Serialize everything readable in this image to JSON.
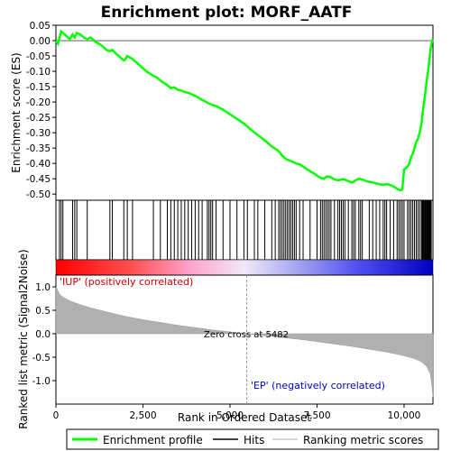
{
  "chart_data": {
    "type": "line",
    "title": "Enrichment plot: MORF_AATF",
    "panels": {
      "es": {
        "ylabel": "Enrichment score (ES)",
        "ylim": [
          -0.52,
          0.05
        ],
        "yticks": [
          0.05,
          0.0,
          -0.05,
          -0.1,
          -0.15,
          -0.2,
          -0.25,
          -0.3,
          -0.35,
          -0.4,
          -0.45,
          -0.5
        ],
        "ytick_labels": [
          "0.05",
          "0.00",
          "-0.05",
          "-0.10",
          "-0.15",
          "-0.20",
          "-0.25",
          "-0.30",
          "-0.35",
          "-0.40",
          "-0.45",
          "-0.50"
        ],
        "series": [
          {
            "name": "Enrichment profile",
            "color": "#00ff00",
            "x": [
              0,
              60,
              150,
              200,
              300,
              400,
              480,
              540,
              600,
              700,
              800,
              900,
              1000,
              1150,
              1300,
              1450,
              1550,
              1620,
              1700,
              1850,
              1950,
              2000,
              2050,
              2200,
              2400,
              2600,
              2800,
              2900,
              3000,
              3200,
              3300,
              3400,
              3500,
              3600,
              3700,
              3800,
              3900,
              4000,
              4200,
              4400,
              4500,
              4600,
              4800,
              5000,
              5200,
              5400,
              5600,
              5800,
              6000,
              6200,
              6400,
              6500,
              6600,
              6700,
              6800,
              6900,
              7000,
              7100,
              7200,
              7400,
              7500,
              7600,
              7700,
              7750,
              7800,
              7900,
              8000,
              8100,
              8200,
              8250,
              8300,
              8400,
              8500,
              8550,
              8600,
              8700,
              8800,
              8900,
              9000,
              9100,
              9200,
              9300,
              9400,
              9500,
              9600,
              9700,
              9800,
              9900,
              9950,
              10000,
              10050,
              10100,
              10150,
              10200,
              10250,
              10300,
              10350,
              10400,
              10450,
              10500,
              10550,
              10600,
              10650,
              10700,
              10730,
              10760,
              10790,
              10820
            ],
            "values": [
              0.0,
              -0.01,
              0.03,
              0.025,
              0.015,
              0.005,
              0.02,
              0.01,
              0.025,
              0.02,
              0.01,
              0.005,
              0.01,
              -0.005,
              -0.015,
              -0.03,
              -0.035,
              -0.03,
              -0.04,
              -0.055,
              -0.065,
              -0.06,
              -0.05,
              -0.06,
              -0.08,
              -0.1,
              -0.115,
              -0.12,
              -0.13,
              -0.145,
              -0.155,
              -0.152,
              -0.16,
              -0.163,
              -0.167,
              -0.17,
              -0.175,
              -0.18,
              -0.193,
              -0.205,
              -0.21,
              -0.213,
              -0.225,
              -0.24,
              -0.255,
              -0.27,
              -0.29,
              -0.308,
              -0.325,
              -0.345,
              -0.36,
              -0.375,
              -0.385,
              -0.39,
              -0.395,
              -0.4,
              -0.403,
              -0.41,
              -0.418,
              -0.432,
              -0.44,
              -0.447,
              -0.45,
              -0.445,
              -0.442,
              -0.445,
              -0.452,
              -0.455,
              -0.453,
              -0.451,
              -0.453,
              -0.458,
              -0.462,
              -0.46,
              -0.455,
              -0.45,
              -0.452,
              -0.457,
              -0.46,
              -0.462,
              -0.465,
              -0.468,
              -0.47,
              -0.467,
              -0.47,
              -0.475,
              -0.483,
              -0.488,
              -0.485,
              -0.42,
              -0.415,
              -0.41,
              -0.4,
              -0.38,
              -0.37,
              -0.35,
              -0.33,
              -0.32,
              -0.3,
              -0.27,
              -0.22,
              -0.18,
              -0.13,
              -0.09,
              -0.06,
              -0.03,
              -0.01,
              0.005
            ]
          }
        ]
      },
      "hits": {
        "legend_name": "Hits",
        "positions": [
          100,
          150,
          200,
          480,
          540,
          600,
          900,
          1550,
          1620,
          1950,
          2050,
          2200,
          2800,
          3000,
          3200,
          3300,
          3400,
          3500,
          3600,
          3700,
          3800,
          3900,
          4000,
          4100,
          4200,
          4350,
          4400,
          4450,
          4500,
          4600,
          4800,
          5000,
          5200,
          5400,
          5500,
          5700,
          5800,
          6000,
          6200,
          6300,
          6400,
          6450,
          6500,
          6550,
          6600,
          6650,
          6700,
          6750,
          6800,
          6850,
          6900,
          7000,
          7100,
          7300,
          7500,
          7600,
          7650,
          7700,
          7750,
          7800,
          7850,
          7900,
          8000,
          8100,
          8150,
          8200,
          8250,
          8300,
          8400,
          8500,
          8550,
          8600,
          8700,
          8750,
          8800,
          9000,
          9100,
          9200,
          9300,
          9400,
          9450,
          9500,
          9600,
          9700,
          9800,
          9850,
          9900,
          9950,
          10000,
          10100,
          10150,
          10200,
          10250,
          10300,
          10350,
          10400,
          10450,
          10500,
          10520,
          10540,
          10560,
          10580,
          10600,
          10620,
          10640,
          10660,
          10680,
          10700,
          10720,
          10740,
          10760,
          10780
        ]
      },
      "ranking": {
        "ylabel": "Ranked list metric (Signal2Noise)",
        "ylim": [
          -1.5,
          1.25
        ],
        "yticks": [
          1.0,
          0.5,
          0.0,
          -0.5,
          -1.0
        ],
        "ytick_labels": [
          "1.0",
          "0.5",
          "0.0",
          "-0.5",
          "-1.0"
        ],
        "legend_name": "Ranking metric scores",
        "x": [
          0,
          100,
          200,
          400,
          700,
          1000,
          1500,
          2000,
          2500,
          3000,
          3500,
          4000,
          4500,
          5000,
          5482,
          6000,
          6500,
          7000,
          7500,
          8000,
          8500,
          9000,
          9500,
          10000,
          10300,
          10500,
          10650,
          10750,
          10800,
          10830
        ],
        "values": [
          1.0,
          0.85,
          0.78,
          0.7,
          0.62,
          0.55,
          0.46,
          0.37,
          0.3,
          0.24,
          0.18,
          0.13,
          0.08,
          0.04,
          0.0,
          -0.04,
          -0.08,
          -0.12,
          -0.17,
          -0.22,
          -0.27,
          -0.33,
          -0.39,
          -0.47,
          -0.53,
          -0.6,
          -0.7,
          -0.85,
          -1.1,
          -1.35
        ]
      }
    },
    "xlabel": "Rank in Ordered Dataset",
    "xlim": [
      0,
      10830
    ],
    "xticks": [
      0,
      2500,
      5000,
      7500,
      10000
    ],
    "xtick_labels": [
      "0",
      "2,500",
      "5,000",
      "7,500",
      "10,000"
    ],
    "zero_cross": 5482,
    "annotations": {
      "pos_label": "'IUP' (positively correlated)",
      "neg_label": "'EP' (negatively correlated)",
      "zero_cross_label": "Zero cross at 5482"
    },
    "legend": {
      "placement": "bottom",
      "entries": [
        "Enrichment profile",
        "Hits",
        "Ranking metric scores"
      ]
    }
  },
  "colors": {
    "es_line": "#00ff00",
    "hits": "#000000",
    "ranking_fill": "#b0b0b0",
    "pos_label": "#cc0000",
    "neg_label": "#0000cc"
  }
}
